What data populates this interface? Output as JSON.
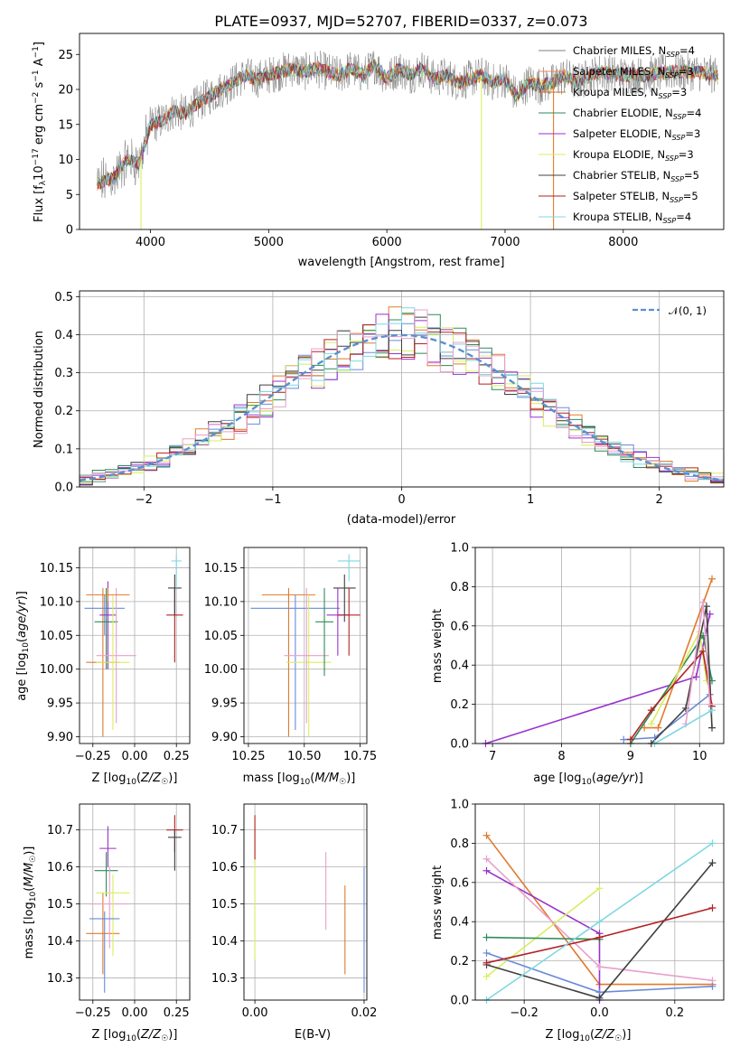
{
  "chart_data": [
    {
      "id": "spectrum",
      "type": "line",
      "title": "PLATE=0937, MJD=52707, FIBERID=0337, z=0.073",
      "xlabel": "wavelength [Angstrom, rest frame]",
      "ylabel": "Flux [f_λ 10^-17 erg cm^-2 s^-1 A^-1]",
      "xlim": [
        3400,
        8850
      ],
      "ylim": [
        0,
        28
      ],
      "xticks": [
        "4000",
        "5000",
        "6000",
        "7000",
        "8000"
      ],
      "yticks": [
        "0",
        "5",
        "10",
        "15",
        "20",
        "25"
      ],
      "grid": false,
      "legend_position": "top-right",
      "legend": [
        {
          "text": "Chabrier MILES, N",
          "sub": "SSP",
          "suffix": "=4",
          "color": "#808080"
        },
        {
          "text": "Salpeter MILES, N",
          "sub": "SSP",
          "suffix": "=3",
          "color": "#ff7f50"
        },
        {
          "text": "Kroupa MILES, N",
          "sub": "SSP",
          "suffix": "=3",
          "color": "#d2691e"
        },
        {
          "text": "Chabrier ELODIE, N",
          "sub": "SSP",
          "suffix": "=4",
          "color": "#2e8b57"
        },
        {
          "text": "Salpeter ELODIE, N",
          "sub": "SSP",
          "suffix": "=3",
          "color": "#9932cc"
        },
        {
          "text": "Kroupa ELODIE, N",
          "sub": "SSP",
          "suffix": "=3",
          "color": "#d8ee60"
        },
        {
          "text": "Chabrier STELIB, N",
          "sub": "SSP",
          "suffix": "=5",
          "color": "#404040"
        },
        {
          "text": "Salpeter STELIB, N",
          "sub": "SSP",
          "suffix": "=5",
          "color": "#b22222"
        },
        {
          "text": "Kroupa STELIB, N",
          "sub": "SSP",
          "suffix": "=4",
          "color": "#7fd8e0"
        }
      ],
      "series_envelope": {
        "x": [
          3550,
          3700,
          3800,
          3900,
          3950,
          4000,
          4100,
          4200,
          4300,
          4400,
          4500,
          4600,
          4700,
          4800,
          4900,
          5000,
          5100,
          5200,
          5300,
          5400,
          5500,
          5600,
          5700,
          5800,
          5900,
          6000,
          6100,
          6200,
          6300,
          6400,
          6500,
          6600,
          6700,
          6800,
          6900,
          7000,
          7100,
          7200,
          7300,
          7400,
          7500,
          7600,
          7800,
          8000,
          8200,
          8400,
          8600,
          8800
        ],
        "y": [
          6.5,
          7.5,
          10,
          9.5,
          12,
          15,
          15.5,
          17,
          16.5,
          18,
          19,
          20,
          21,
          22,
          21.5,
          22,
          22.5,
          23,
          22.5,
          23,
          22.5,
          22,
          23,
          22,
          23.5,
          21.5,
          23,
          22,
          23,
          21.5,
          22,
          21,
          21.5,
          22,
          21,
          21.5,
          19,
          21,
          20.5,
          21,
          22,
          21,
          22.5,
          22,
          22,
          22.5,
          22.5,
          22
        ]
      }
    },
    {
      "id": "residuals",
      "type": "step",
      "xlabel": "(data-model)/error",
      "ylabel": "Normed distribution",
      "xlim": [
        -2.5,
        2.5
      ],
      "ylim": [
        0,
        0.515
      ],
      "xticks": [
        "−2",
        "−1",
        "0",
        "1",
        "2"
      ],
      "yticks": [
        "0.0",
        "0.1",
        "0.2",
        "0.3",
        "0.4",
        "0.5"
      ],
      "grid": true,
      "legend": [
        {
          "text": "𝒩(0, 1)",
          "color": "#5b8fd0",
          "style": "dashed"
        }
      ],
      "bin_width": 0.1,
      "colors": [
        "#6a8ad8",
        "#e07a2c",
        "#2e8b57",
        "#9932cc",
        "#d8ee60",
        "#404040",
        "#b22222",
        "#7fd8e0",
        "#e8a0cc"
      ]
    },
    {
      "id": "age-vs-Z",
      "type": "errorbar",
      "xlabel": "Z [log₁₀(Z/Z☉)]",
      "ylabel": "age  [log₁₀(age/yr)]",
      "xlim": [
        -0.33,
        0.33
      ],
      "ylim": [
        9.89,
        10.18
      ],
      "xticks": [
        "−0.25",
        "0.00",
        "0.25"
      ],
      "yticks": [
        "9.90",
        "9.95",
        "10.00",
        "10.05",
        "10.10",
        "10.15"
      ],
      "grid": true,
      "points": [
        {
          "x": -0.19,
          "y": 10.01,
          "xerr": [
            0.1,
            0.1
          ],
          "yerr": [
            0.11,
            0.11
          ],
          "color": "#e07a2c"
        },
        {
          "x": -0.18,
          "y": 10.09,
          "xerr": [
            0.12,
            0.12
          ],
          "yerr": [
            0.04,
            0.02
          ],
          "color": "#6a8ad8"
        },
        {
          "x": -0.17,
          "y": 10.07,
          "xerr": [
            0.07,
            0.07
          ],
          "yerr": [
            0.07,
            0.05
          ],
          "color": "#2e8b57"
        },
        {
          "x": -0.16,
          "y": 10.08,
          "xerr": [
            0.05,
            0.05
          ],
          "yerr": [
            0.08,
            0.05
          ],
          "color": "#9932cc"
        },
        {
          "x": -0.11,
          "y": 10.02,
          "xerr": [
            0.12,
            0.12
          ],
          "yerr": [
            0.1,
            0.1
          ],
          "color": "#e8a0cc"
        },
        {
          "x": -0.13,
          "y": 10.01,
          "xerr": [
            0.1,
            0.1
          ],
          "yerr": [
            0.1,
            0.1
          ],
          "color": "#d8ee60"
        },
        {
          "x": -0.16,
          "y": 10.11,
          "xerr": [
            0.13,
            0.13
          ],
          "yerr": [
            0.01,
            0.01
          ],
          "color": "#e07a2c"
        },
        {
          "x": 0.24,
          "y": 10.08,
          "xerr": [
            0.05,
            0.05
          ],
          "yerr": [
            0.07,
            0.04
          ],
          "color": "#b22222"
        },
        {
          "x": 0.24,
          "y": 10.12,
          "xerr": [
            0.04,
            0.04
          ],
          "yerr": [
            0.04,
            0.02
          ],
          "color": "#404040"
        },
        {
          "x": 0.25,
          "y": 10.16,
          "xerr": [
            0.03,
            0.03
          ],
          "yerr": [
            0.04,
            0.01
          ],
          "color": "#7fd8e0"
        }
      ]
    },
    {
      "id": "age-vs-mass",
      "type": "errorbar",
      "xlabel": "mass [log₁₀(M/M☉)]",
      "xlim": [
        10.23,
        10.78
      ],
      "ylim": [
        9.89,
        10.18
      ],
      "xticks": [
        "10.25",
        "10.50",
        "10.75"
      ],
      "yticks": [
        "9.90",
        "9.95",
        "10.00",
        "10.05",
        "10.10",
        "10.15"
      ],
      "grid": true,
      "points": [
        {
          "x": 10.43,
          "y": 10.11,
          "xerr": [
            0.12,
            0.12
          ],
          "yerr": [
            0.21,
            0.01
          ],
          "color": "#e07a2c"
        },
        {
          "x": 10.46,
          "y": 10.09,
          "xerr": [
            0.2,
            0.2
          ],
          "yerr": [
            0.18,
            0.02
          ],
          "color": "#6a8ad8"
        },
        {
          "x": 10.52,
          "y": 10.01,
          "xerr": [
            0.1,
            0.1
          ],
          "yerr": [
            0.11,
            0.1
          ],
          "color": "#d8ee60"
        },
        {
          "x": 10.51,
          "y": 10.02,
          "xerr": [
            0.1,
            0.1
          ],
          "yerr": [
            0.1,
            0.1
          ],
          "color": "#e8a0cc"
        },
        {
          "x": 10.59,
          "y": 10.07,
          "xerr": [
            0.04,
            0.04
          ],
          "yerr": [
            0.08,
            0.05
          ],
          "color": "#2e8b57"
        },
        {
          "x": 10.65,
          "y": 10.08,
          "xerr": [
            0.05,
            0.05
          ],
          "yerr": [
            0.06,
            0.04
          ],
          "color": "#9932cc"
        },
        {
          "x": 10.68,
          "y": 10.12,
          "xerr": [
            0.05,
            0.05
          ],
          "yerr": [
            0.05,
            0.02
          ],
          "color": "#404040"
        },
        {
          "x": 10.7,
          "y": 10.08,
          "xerr": [
            0.05,
            0.05
          ],
          "yerr": [
            0.06,
            0.04
          ],
          "color": "#b22222"
        },
        {
          "x": 10.7,
          "y": 10.16,
          "xerr": [
            0.05,
            0.05
          ],
          "yerr": [
            0.03,
            0.01
          ],
          "color": "#7fd8e0"
        }
      ]
    },
    {
      "id": "mass-weight-vs-age",
      "type": "line",
      "xlabel": "age  [log₁₀(age/yr)]",
      "ylabel": "mass weight",
      "xlim": [
        6.75,
        10.35
      ],
      "ylim": [
        0,
        1.0
      ],
      "xticks": [
        "7",
        "8",
        "9",
        "10"
      ],
      "yticks": [
        "0.0",
        "0.2",
        "0.4",
        "0.6",
        "0.8",
        "1.0"
      ],
      "grid": true,
      "series": [
        {
          "color": "#9932cc",
          "x": [
            6.9,
            9.95,
            10.15
          ],
          "y": [
            0.0,
            0.34,
            0.66
          ]
        },
        {
          "color": "#e07a2c",
          "x": [
            9.2,
            9.4,
            10.18
          ],
          "y": [
            0.08,
            0.08,
            0.84
          ]
        },
        {
          "color": "#6a8ad8",
          "x": [
            8.9,
            9.35,
            10.15
          ],
          "y": [
            0.02,
            0.03,
            0.25
          ]
        },
        {
          "color": "#2e8b57",
          "x": [
            9.0,
            10.05,
            10.18
          ],
          "y": [
            0.0,
            0.55,
            0.32
          ]
        },
        {
          "color": "#d8ee60",
          "x": [
            9.3,
            10.0,
            10.1
          ],
          "y": [
            0.1,
            0.57,
            0.32
          ]
        },
        {
          "color": "#404040",
          "x": [
            9.3,
            9.8,
            10.1,
            10.18
          ],
          "y": [
            0.0,
            0.18,
            0.7,
            0.08
          ]
        },
        {
          "color": "#b22222",
          "x": [
            9.0,
            9.3,
            10.05,
            10.18
          ],
          "y": [
            0.02,
            0.17,
            0.47,
            0.19
          ]
        },
        {
          "color": "#e8a0cc",
          "x": [
            9.8,
            10.05,
            10.15
          ],
          "y": [
            0.1,
            0.72,
            0.2
          ]
        },
        {
          "color": "#7fd8e0",
          "x": [
            9.35,
            10.18
          ],
          "y": [
            0.0,
            0.17
          ]
        }
      ]
    },
    {
      "id": "mass-vs-Z",
      "type": "errorbar",
      "xlabel": "Z [log₁₀(Z/Z☉)]",
      "ylabel": "mass [log₁₀(M/M☉)]",
      "xlim": [
        -0.33,
        0.33
      ],
      "ylim": [
        10.24,
        10.77
      ],
      "xticks": [
        "−0.25",
        "0.00",
        "0.25"
      ],
      "yticks": [
        "10.3",
        "10.4",
        "10.5",
        "10.6",
        "10.7"
      ],
      "grid": true,
      "points": [
        {
          "x": -0.19,
          "y": 10.42,
          "xerr": [
            0.1,
            0.1
          ],
          "yerr": [
            0.11,
            0.11
          ],
          "color": "#e07a2c"
        },
        {
          "x": -0.17,
          "y": 10.59,
          "xerr": [
            0.07,
            0.07
          ],
          "yerr": [
            0.07,
            0.05
          ],
          "color": "#2e8b57"
        },
        {
          "x": -0.16,
          "y": 10.65,
          "xerr": [
            0.05,
            0.05
          ],
          "yerr": [
            0.05,
            0.06
          ],
          "color": "#9932cc"
        },
        {
          "x": -0.15,
          "y": 10.5,
          "xerr": [
            0.12,
            0.12
          ],
          "yerr": [
            0.12,
            0.1
          ],
          "color": "#e8a0cc"
        },
        {
          "x": -0.13,
          "y": 10.53,
          "xerr": [
            0.1,
            0.1
          ],
          "yerr": [
            0.17,
            0.05
          ],
          "color": "#d8ee60"
        },
        {
          "x": -0.18,
          "y": 10.46,
          "xerr": [
            0.09,
            0.09
          ],
          "yerr": [
            0.2,
            0.02
          ],
          "color": "#6a8ad8"
        },
        {
          "x": 0.24,
          "y": 10.7,
          "xerr": [
            0.05,
            0.05
          ],
          "yerr": [
            0.06,
            0.04
          ],
          "color": "#b22222"
        },
        {
          "x": 0.24,
          "y": 10.68,
          "xerr": [
            0.04,
            0.04
          ],
          "yerr": [
            0.09,
            0.02
          ],
          "color": "#404040"
        }
      ]
    },
    {
      "id": "mass-vs-ebv",
      "type": "errorbar",
      "xlabel": "E(B-V)",
      "xlim": [
        -0.002,
        0.0205
      ],
      "ylim": [
        10.24,
        10.77
      ],
      "xticks": [
        "0.00",
        "0.02"
      ],
      "yticks": [
        "10.3",
        "10.4",
        "10.5",
        "10.6",
        "10.7"
      ],
      "grid": true,
      "points": [
        {
          "x": 0.0,
          "y": 10.6,
          "xerr": [
            0,
            0
          ],
          "yerr": [
            0.25,
            0.12
          ],
          "color": "#d8ee60"
        },
        {
          "x": 0.0,
          "y": 10.69,
          "xerr": [
            0,
            0
          ],
          "yerr": [
            0.07,
            0.05
          ],
          "color": "#b22222"
        },
        {
          "x": 0.013,
          "y": 10.53,
          "xerr": [
            0,
            0
          ],
          "yerr": [
            0.1,
            0.11
          ],
          "color": "#e8a0cc"
        },
        {
          "x": 0.0165,
          "y": 10.43,
          "xerr": [
            0,
            0
          ],
          "yerr": [
            0.12,
            0.12
          ],
          "color": "#e07a2c"
        },
        {
          "x": 0.02,
          "y": 10.43,
          "xerr": [
            0,
            0
          ],
          "yerr": [
            0.17,
            0.17
          ],
          "color": "#6a8ad8"
        }
      ]
    },
    {
      "id": "mass-weight-vs-Z",
      "type": "line",
      "xlabel": "Z [log₁₀(Z/Z☉)]",
      "ylabel": "mass weight",
      "xlim": [
        -0.33,
        0.33
      ],
      "ylim": [
        0,
        1.0
      ],
      "xticks": [
        "−0.2",
        "0.0",
        "0.2"
      ],
      "yticks": [
        "0.0",
        "0.2",
        "0.4",
        "0.6",
        "0.8",
        "1.0"
      ],
      "grid": true,
      "series": [
        {
          "color": "#e07a2c",
          "x": [
            -0.3,
            0.0,
            0.3
          ],
          "y": [
            0.84,
            0.08,
            0.08
          ]
        },
        {
          "color": "#9932cc",
          "x": [
            -0.3,
            0.0,
            0.0
          ],
          "y": [
            0.66,
            0.34,
            0.0
          ]
        },
        {
          "color": "#e8a0cc",
          "x": [
            -0.3,
            0.0,
            0.3
          ],
          "y": [
            0.72,
            0.17,
            0.1
          ]
        },
        {
          "color": "#d8ee60",
          "x": [
            -0.3,
            0.0
          ],
          "y": [
            0.12,
            0.57
          ]
        },
        {
          "color": "#2e8b57",
          "x": [
            -0.3,
            0.0
          ],
          "y": [
            0.32,
            0.31
          ]
        },
        {
          "color": "#6a8ad8",
          "x": [
            -0.3,
            0.0,
            0.3
          ],
          "y": [
            0.24,
            0.04,
            0.07
          ]
        },
        {
          "color": "#404040",
          "x": [
            -0.3,
            0.0,
            0.3
          ],
          "y": [
            0.18,
            0.01,
            0.7
          ]
        },
        {
          "color": "#b22222",
          "x": [
            -0.3,
            0.0,
            0.3
          ],
          "y": [
            0.19,
            0.32,
            0.47
          ]
        },
        {
          "color": "#7fd8e0",
          "x": [
            -0.3,
            0.0,
            0.3
          ],
          "y": [
            0.0,
            0.4,
            0.8
          ]
        }
      ]
    }
  ]
}
